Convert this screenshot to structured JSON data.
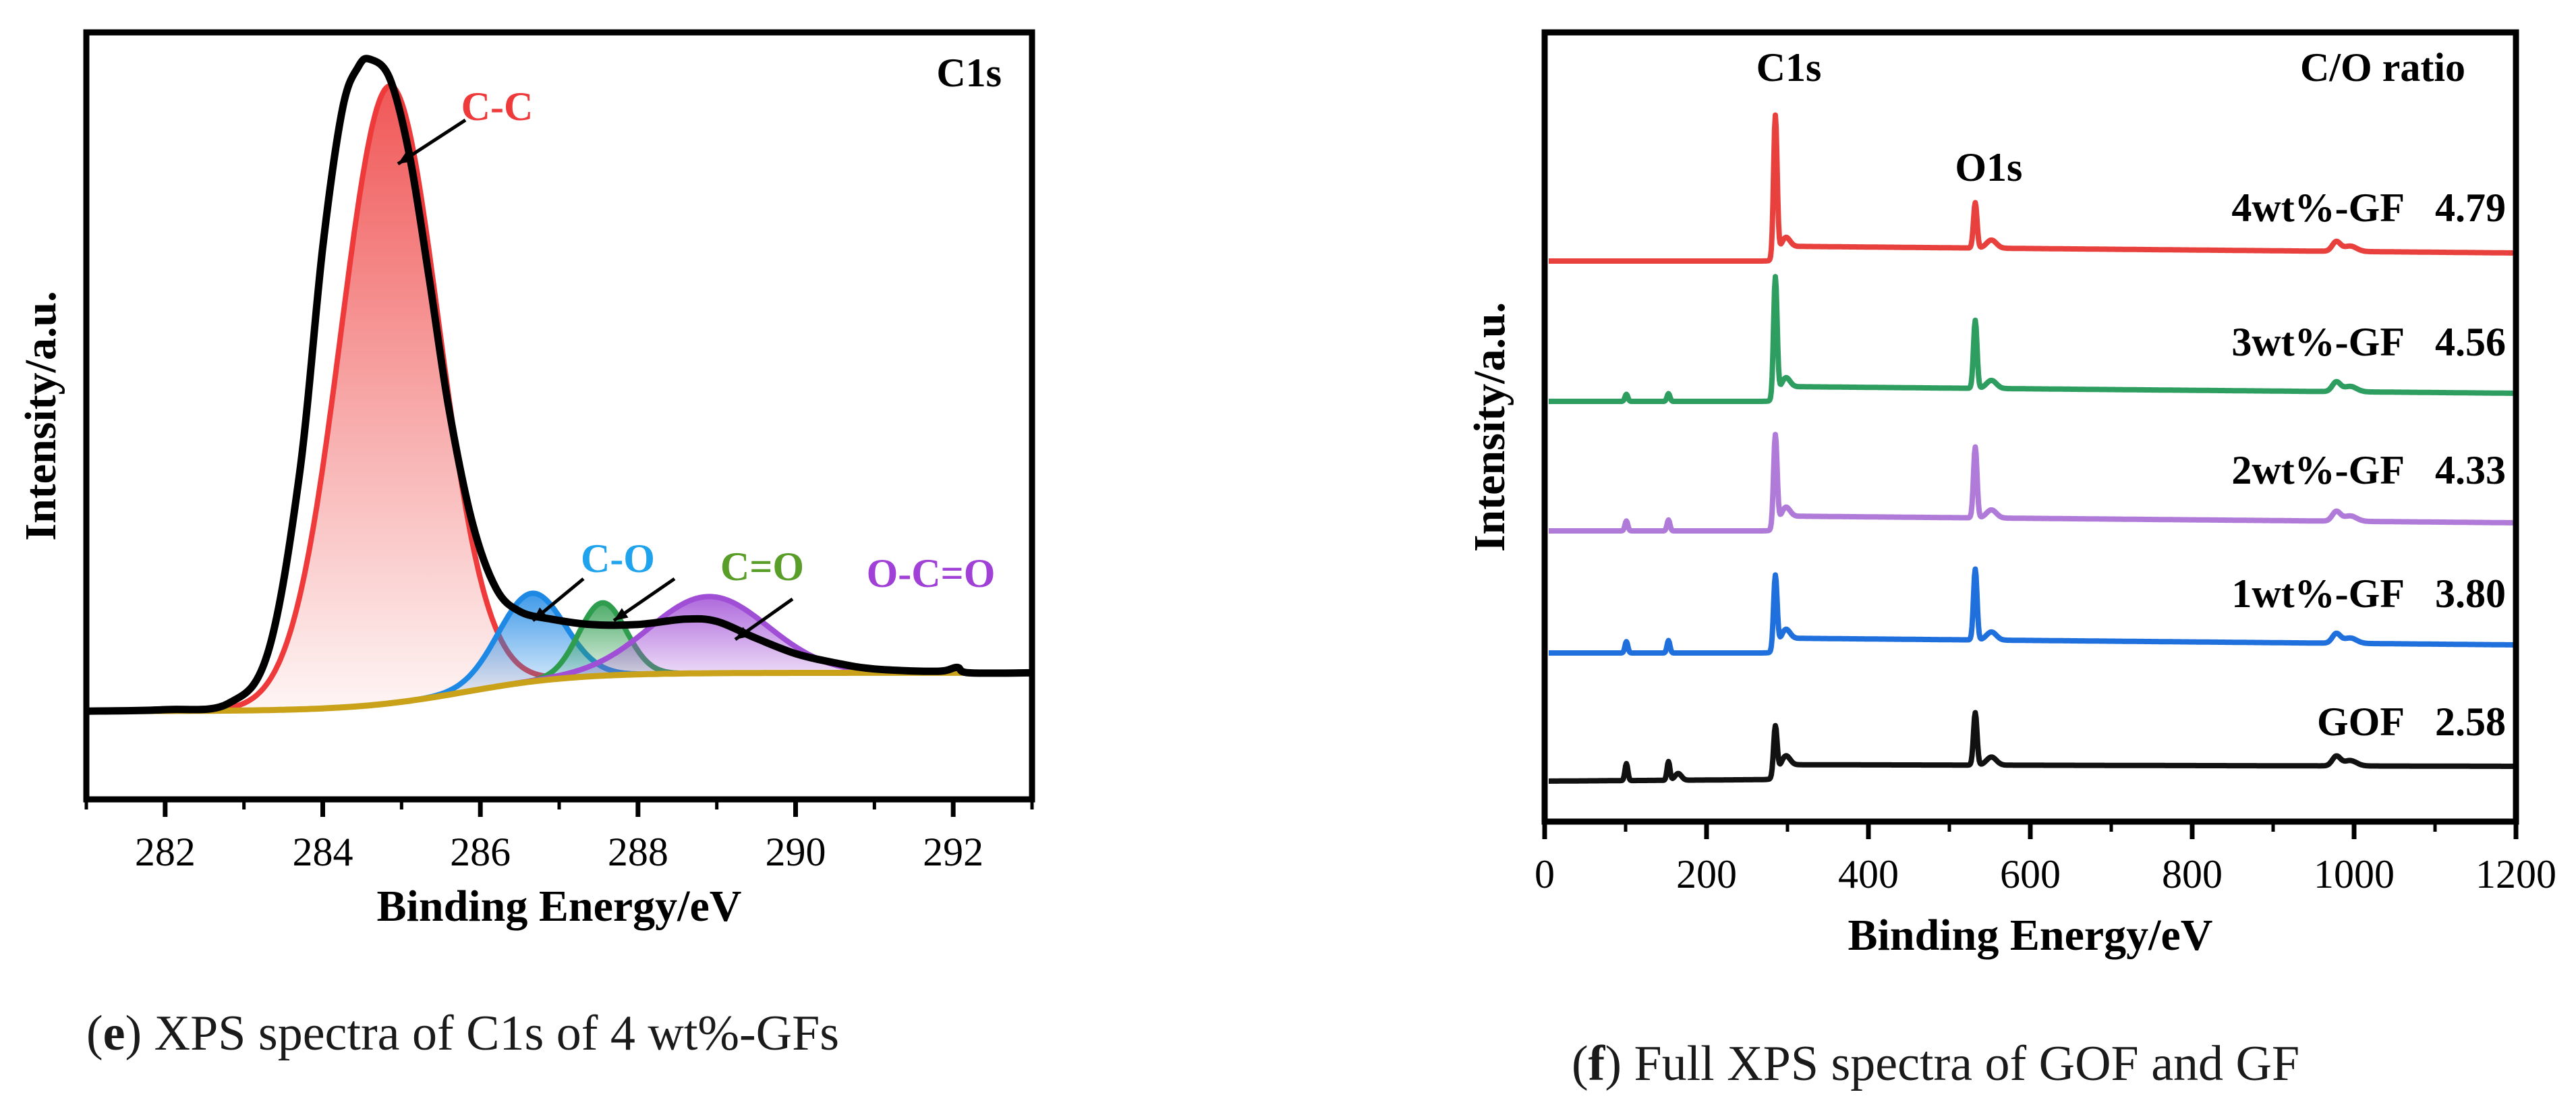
{
  "panel_e": {
    "caption_letter": "e",
    "caption_text": ") XPS spectra of C1s of 4 wt%-GFs",
    "caption_prefix": "(",
    "chart_data": {
      "type": "line",
      "title": "C1s",
      "xlabel": "Binding Energy/eV",
      "ylabel": "Intensity/a.u.",
      "xlim": [
        281,
        293
      ],
      "ylim": [
        0,
        1.0
      ],
      "xticks": [
        282,
        284,
        286,
        288,
        290,
        292
      ],
      "baseline": {
        "left": 0.115,
        "right": 0.165,
        "sigmoid_center": 285.8,
        "sigmoid_width": 0.7
      },
      "peaks": [
        {
          "name": "C-C",
          "center": 284.85,
          "amplitude": 0.805,
          "sigma": 0.62,
          "color": "#ee3a3a"
        },
        {
          "name": "C-O",
          "center": 286.65,
          "amplitude": 0.115,
          "sigma": 0.42,
          "color": "#1e88e5"
        },
        {
          "name": "C=O",
          "center": 287.55,
          "amplitude": 0.095,
          "sigma": 0.3,
          "color": "#2e9d4e"
        },
        {
          "name": "O-C=O",
          "center": 288.9,
          "amplitude": 0.1,
          "sigma": 0.75,
          "color": "#a04ed6"
        }
      ],
      "envelope": [
        [
          281,
          0.115
        ],
        [
          282,
          0.117
        ],
        [
          282.8,
          0.125
        ],
        [
          283.3,
          0.19
        ],
        [
          283.7,
          0.42
        ],
        [
          284.0,
          0.72
        ],
        [
          284.25,
          0.9
        ],
        [
          284.45,
          0.955
        ],
        [
          284.6,
          0.965
        ],
        [
          284.85,
          0.94
        ],
        [
          285.1,
          0.84
        ],
        [
          285.35,
          0.68
        ],
        [
          285.6,
          0.51
        ],
        [
          285.9,
          0.36
        ],
        [
          286.2,
          0.275
        ],
        [
          286.5,
          0.245
        ],
        [
          286.9,
          0.235
        ],
        [
          287.4,
          0.228
        ],
        [
          288.0,
          0.228
        ],
        [
          288.6,
          0.235
        ],
        [
          289.0,
          0.232
        ],
        [
          289.5,
          0.21
        ],
        [
          290.0,
          0.19
        ],
        [
          290.5,
          0.178
        ],
        [
          291.0,
          0.17
        ],
        [
          291.8,
          0.167
        ],
        [
          292.05,
          0.172
        ],
        [
          292.2,
          0.165
        ],
        [
          293,
          0.165
        ]
      ],
      "annotations": [
        {
          "label": "C-C",
          "color": "#ee3a3a"
        },
        {
          "label": "C-O",
          "color": "#1fa3ec"
        },
        {
          "label": "C=O",
          "color": "#5a9e2a"
        },
        {
          "label": "O-C=O",
          "color": "#a040d6"
        }
      ]
    }
  },
  "panel_f": {
    "caption_letter": "f",
    "caption_text": ") Full XPS spectra of GOF and GF",
    "caption_prefix": "(",
    "chart_data": {
      "type": "line",
      "xlabel": "Binding Energy/eV",
      "ylabel": "Intensity/a.u.",
      "xlim": [
        0,
        1200
      ],
      "xticks": [
        0,
        200,
        400,
        600,
        800,
        1000,
        1200
      ],
      "header_label": "C/O ratio",
      "peak_labels": [
        {
          "label": "C1s",
          "x": 285
        },
        {
          "label": "O1s",
          "x": 532
        }
      ],
      "series": [
        {
          "name": "4wt%-GF",
          "ratio": "4.79",
          "color": "#e8403d",
          "offset": 4,
          "c1s": 1.0,
          "o1s": 0.32,
          "minor": 0.0
        },
        {
          "name": "3wt%-GF",
          "ratio": "4.56",
          "color": "#2e9d60",
          "offset": 3,
          "c1s": 0.85,
          "o1s": 0.48,
          "minor": 0.05
        },
        {
          "name": "2wt%-GF",
          "ratio": "4.33",
          "color": "#b07ad9",
          "offset": 2,
          "c1s": 0.65,
          "o1s": 0.5,
          "minor": 0.07
        },
        {
          "name": "1wt%-GF",
          "ratio": "3.80",
          "color": "#1f6fdc",
          "offset": 1,
          "c1s": 0.52,
          "o1s": 0.5,
          "minor": 0.08
        },
        {
          "name": "GOF",
          "ratio": "2.58",
          "color": "#111111",
          "offset": 0,
          "c1s": 0.35,
          "o1s": 0.37,
          "minor": 0.12
        }
      ]
    }
  }
}
